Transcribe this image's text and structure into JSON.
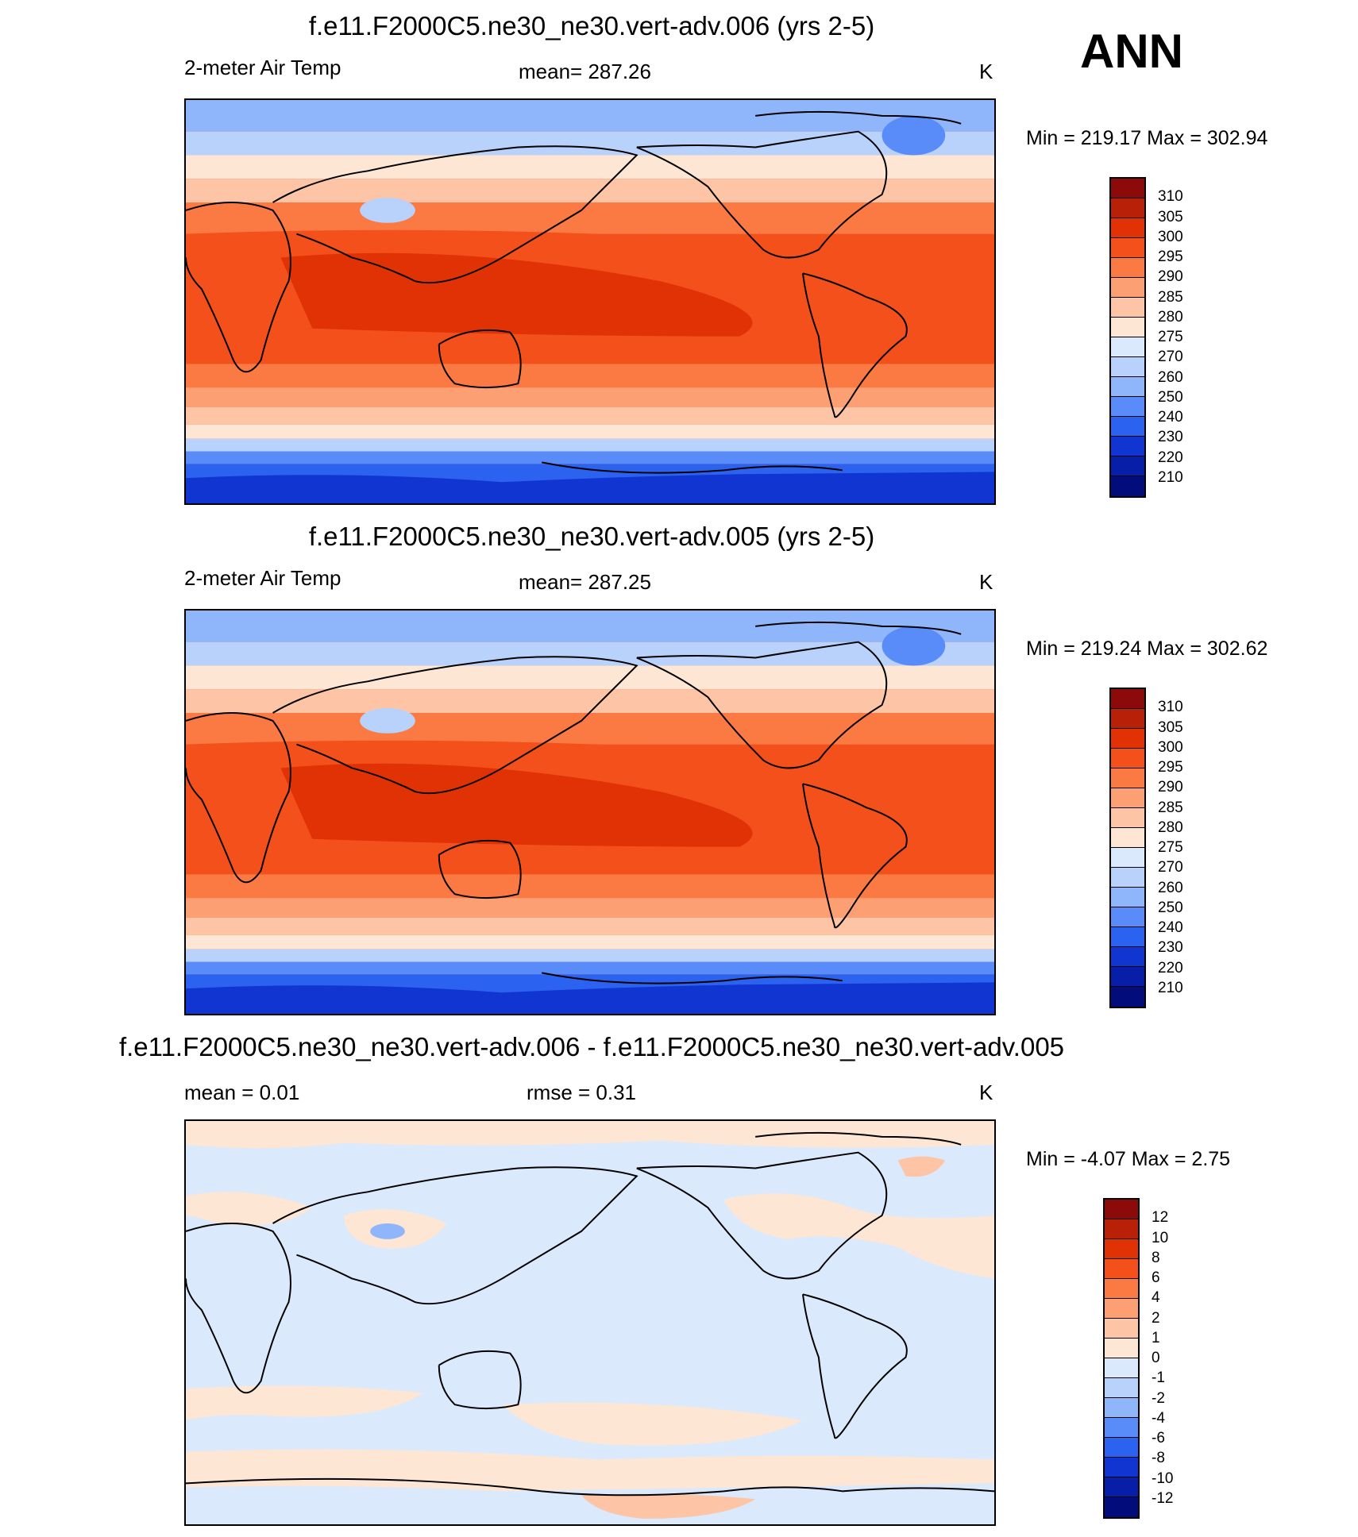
{
  "season": "ANN",
  "panels": [
    {
      "title": "f.e11.F2000C5.ne30_ne30.vert-adv.006 (yrs 2-5)",
      "left_label": "2-meter Air Temp",
      "center_label": "mean= 287.26",
      "units": "K",
      "minmax": "Min = 219.17 Max = 302.94",
      "colorbar": {
        "ticks": [
          "310",
          "305",
          "300",
          "295",
          "290",
          "285",
          "280",
          "275",
          "270",
          "260",
          "250",
          "240",
          "230",
          "220",
          "210"
        ],
        "colors": [
          "#8c0a0a",
          "#b82007",
          "#e03205",
          "#f4501b",
          "#fb7a44",
          "#fca074",
          "#fdc5a6",
          "#fee6d4",
          "#dbe9fc",
          "#b8d2fc",
          "#8fb5fb",
          "#5a8cf9",
          "#2c62f0",
          "#1135d1",
          "#061ea8",
          "#020c7a"
        ]
      },
      "chart_data": {
        "type": "heatmap",
        "variable": "2-meter Air Temp",
        "units": "K",
        "mean": 287.26,
        "min": 219.17,
        "max": 302.94,
        "contour_levels": [
          210,
          220,
          230,
          240,
          250,
          260,
          270,
          275,
          280,
          285,
          290,
          295,
          300,
          305,
          310
        ]
      }
    },
    {
      "title": "f.e11.F2000C5.ne30_ne30.vert-adv.005 (yrs 2-5)",
      "left_label": "2-meter Air Temp",
      "center_label": "mean= 287.25",
      "units": "K",
      "minmax": "Min = 219.24 Max = 302.62",
      "colorbar": {
        "ticks": [
          "310",
          "305",
          "300",
          "295",
          "290",
          "285",
          "280",
          "275",
          "270",
          "260",
          "250",
          "240",
          "230",
          "220",
          "210"
        ],
        "colors": [
          "#8c0a0a",
          "#b82007",
          "#e03205",
          "#f4501b",
          "#fb7a44",
          "#fca074",
          "#fdc5a6",
          "#fee6d4",
          "#dbe9fc",
          "#b8d2fc",
          "#8fb5fb",
          "#5a8cf9",
          "#2c62f0",
          "#1135d1",
          "#061ea8",
          "#020c7a"
        ]
      },
      "chart_data": {
        "type": "heatmap",
        "variable": "2-meter Air Temp",
        "units": "K",
        "mean": 287.25,
        "min": 219.24,
        "max": 302.62,
        "contour_levels": [
          210,
          220,
          230,
          240,
          250,
          260,
          270,
          275,
          280,
          285,
          290,
          295,
          300,
          305,
          310
        ]
      }
    },
    {
      "title": "f.e11.F2000C5.ne30_ne30.vert-adv.006 - f.e11.F2000C5.ne30_ne30.vert-adv.005",
      "left_label": "mean =   0.01",
      "center_label": "rmse =   0.31",
      "units": "K",
      "minmax": "Min =  -4.07 Max =   2.75",
      "colorbar": {
        "ticks": [
          "12",
          "10",
          "8",
          "6",
          "4",
          "2",
          "1",
          "0",
          "-1",
          "-2",
          "-4",
          "-6",
          "-8",
          "-10",
          "-12"
        ],
        "colors": [
          "#8c0a0a",
          "#b82007",
          "#e03205",
          "#f4501b",
          "#fb7a44",
          "#fca074",
          "#fdc5a6",
          "#fee6d4",
          "#dbe9fc",
          "#b8d2fc",
          "#8fb5fb",
          "#5a8cf9",
          "#2c62f0",
          "#1135d1",
          "#061ea8",
          "#020c7a"
        ]
      },
      "chart_data": {
        "type": "heatmap",
        "variable": "difference",
        "units": "K",
        "mean": 0.01,
        "rmse": 0.31,
        "min": -4.07,
        "max": 2.75,
        "contour_levels": [
          -12,
          -10,
          -8,
          -6,
          -4,
          -2,
          -1,
          0,
          1,
          2,
          4,
          6,
          8,
          10,
          12
        ]
      }
    }
  ]
}
